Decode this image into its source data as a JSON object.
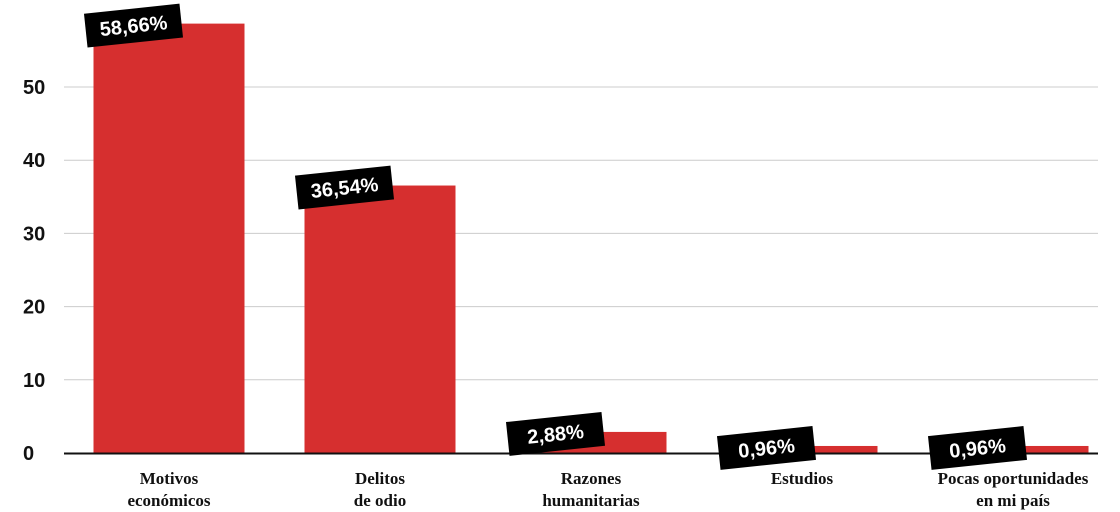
{
  "chart_data": {
    "type": "bar",
    "categories": [
      [
        "Motivos",
        "económicos"
      ],
      [
        "Delitos",
        "de odio"
      ],
      [
        "Razones",
        "humanitarias"
      ],
      [
        "Estudios"
      ],
      [
        "Pocas oportunidades",
        "en mi país"
      ]
    ],
    "values": [
      58.66,
      36.54,
      2.88,
      0.96,
      0.96
    ],
    "data_labels": [
      "58,66%",
      "36,54%",
      "2,88%",
      "0,96%",
      "0,96%"
    ],
    "yticks": [
      "0",
      "10",
      "20",
      "30",
      "40",
      "50"
    ],
    "ylim": [
      0,
      60
    ],
    "title": "",
    "xlabel": "",
    "ylabel": "",
    "grid": true,
    "colors": {
      "bar": "#d62f2f",
      "label_bg": "#000000",
      "label_text": "#ffffff",
      "grid": "#cccccc",
      "axis": "#111111"
    }
  }
}
